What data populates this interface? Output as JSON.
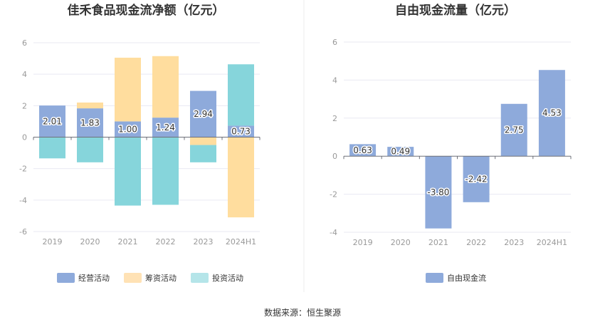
{
  "source": "数据来源：恒生聚源",
  "chart_data": [
    {
      "type": "bar",
      "stacked": true,
      "title": "佳禾食品现金流净额（亿元）",
      "categories": [
        "2019",
        "2020",
        "2021",
        "2022",
        "2023",
        "2024H1"
      ],
      "ylim": [
        -6,
        6
      ],
      "yticks": [
        -6,
        -4,
        -2,
        0,
        2,
        4,
        6
      ],
      "grid": true,
      "legend_position": "bottom",
      "series": [
        {
          "name": "经营活动",
          "color": "#8eaadb",
          "values": [
            2.01,
            1.83,
            1.0,
            1.24,
            2.94,
            0.73
          ]
        },
        {
          "name": "筹资活动",
          "color": "#ffdd9e",
          "values": [
            0.0,
            0.37,
            4.05,
            3.91,
            -0.5,
            -5.1
          ]
        },
        {
          "name": "投资活动",
          "color": "#86d5db",
          "values": [
            -1.35,
            -1.6,
            -4.35,
            -4.3,
            -1.1,
            3.9
          ]
        }
      ],
      "data_labels": [
        "2.01",
        "1.83",
        "1.00",
        "1.24",
        "2.94",
        "0.73"
      ],
      "legend_swatch_colors": [
        "#8eaadb",
        "#ffe2b5",
        "#b5e5e9"
      ]
    },
    {
      "type": "bar",
      "title": "自由现金流量（亿元）",
      "categories": [
        "2019",
        "2020",
        "2021",
        "2022",
        "2023",
        "2024H1"
      ],
      "ylim": [
        -4,
        6
      ],
      "yticks": [
        -4,
        -2,
        0,
        2,
        4,
        6
      ],
      "grid": true,
      "legend_position": "bottom",
      "series": [
        {
          "name": "自由现金流",
          "color": "#8eaadb",
          "values": [
            0.63,
            0.49,
            -3.8,
            -2.42,
            2.75,
            4.53
          ]
        }
      ],
      "data_labels": [
        "0.63",
        "0.49",
        "-3.80",
        "-2.42",
        "2.75",
        "4.53"
      ]
    }
  ]
}
